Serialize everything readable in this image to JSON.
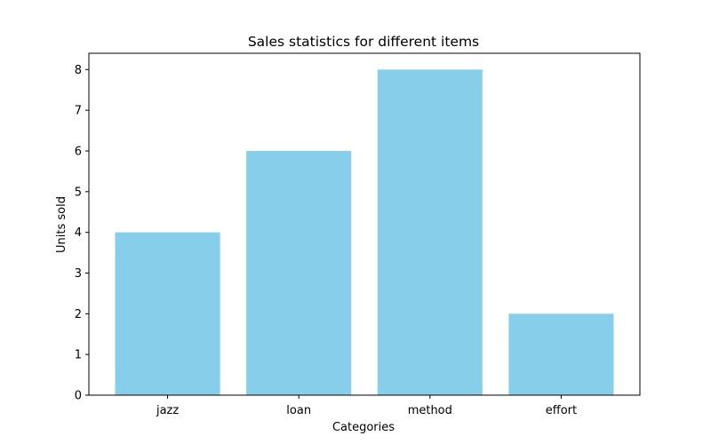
{
  "chart_data": {
    "type": "bar",
    "title": "Sales statistics for different items",
    "xlabel": "Categories",
    "ylabel": "Units sold",
    "categories": [
      "jazz",
      "loan",
      "method",
      "effort"
    ],
    "values": [
      4,
      6,
      8,
      2
    ],
    "ylim": [
      0,
      8.4
    ],
    "yticks": [
      "0",
      "1",
      "2",
      "3",
      "4",
      "5",
      "6",
      "7",
      "8"
    ],
    "grid": false,
    "bar_color": "#87ceeb"
  }
}
